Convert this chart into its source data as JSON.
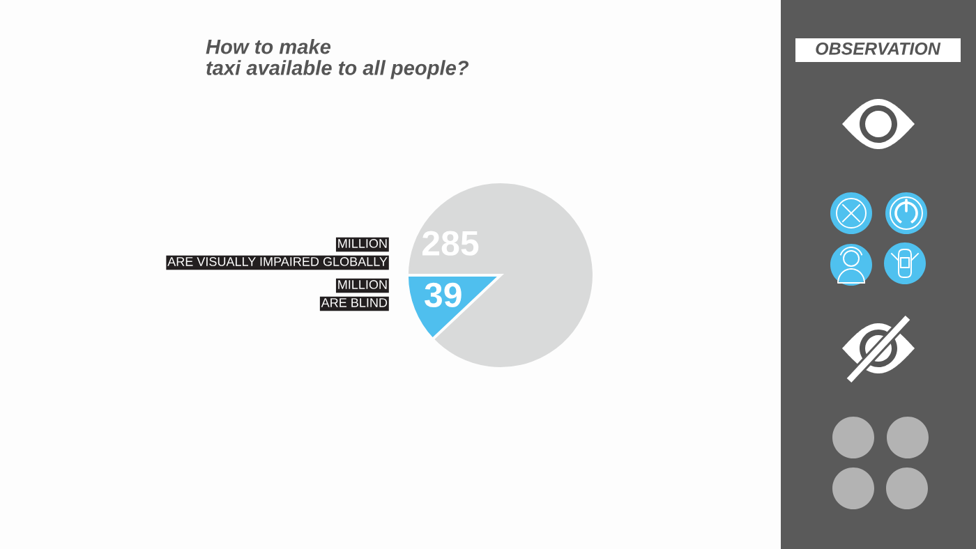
{
  "chart_data": {
    "type": "pie",
    "title": "How to make\ntaxi available to all people?",
    "categories": [
      "MILLION\nARE VISUALLY IMPAIRED GLOBALLY",
      "MILLION\nARE BLIND"
    ],
    "values": [
      285,
      39
    ],
    "colors": [
      "#d9dada",
      "#4fbfee"
    ],
    "data_labels": true,
    "annotations": [
      "OBSERVATION"
    ]
  }
}
